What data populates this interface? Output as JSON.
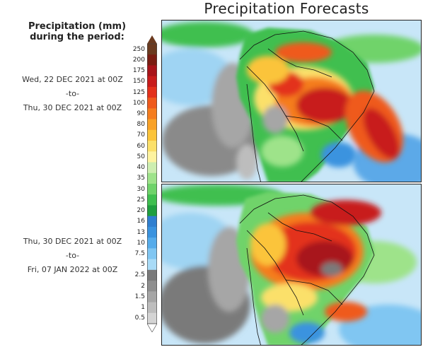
{
  "title": "Precipitation Forecasts",
  "legend": {
    "heading_line1": "Precipitation (mm)",
    "heading_line2": "during the period:",
    "levels": [
      "250",
      "200",
      "175",
      "150",
      "125",
      "100",
      "90",
      "80",
      "70",
      "60",
      "50",
      "40",
      "35",
      "30",
      "25",
      "20",
      "16",
      "13",
      "10",
      "7.5",
      "5",
      "2.5",
      "2",
      "1.5",
      "1",
      "0.5"
    ],
    "colors": [
      "#6b3a1f",
      "#7a1d12",
      "#a8141a",
      "#c81c1c",
      "#e3311c",
      "#ef5a1c",
      "#f57d1f",
      "#f9a227",
      "#fbc43a",
      "#fbe06a",
      "#fdf3a0",
      "#cdeeb0",
      "#9ee38a",
      "#6fd36a",
      "#3fbf4f",
      "#1f9f3f",
      "#2f7fd0",
      "#3a93df",
      "#56aceb",
      "#80c6f2",
      "#a9dbf7",
      "#7a7a7a",
      "#8f8f8f",
      "#a6a6a6",
      "#bdbdbd",
      "#d4d4d4"
    ]
  },
  "periods": [
    {
      "start": "Wed, 22 DEC 2021 at 00Z",
      "sep": "-to-",
      "end": "Thu, 30 DEC 2021 at 00Z"
    },
    {
      "start": "Thu, 30 DEC 2021 at 00Z",
      "sep": "-to-",
      "end": "Fri, 07 JAN 2022 at 00Z"
    }
  ],
  "maps": [
    {
      "name": "forecast-map-week1"
    },
    {
      "name": "forecast-map-week2"
    }
  ]
}
